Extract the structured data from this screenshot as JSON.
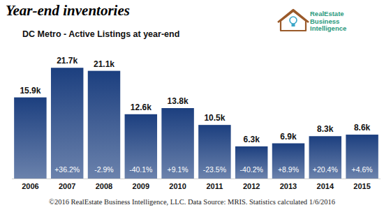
{
  "chart_data": {
    "type": "bar",
    "title": "Year-end inventories",
    "subtitle": "DC Metro - Active Listings at year-end",
    "logo_text": [
      "RealEstate",
      "Business",
      "Intelligence"
    ],
    "caption": "©2016 RealEstate Business Intelligence, LLC. Data Source: MRIS. Statistics calculated 1/6/2016",
    "categories": [
      "2006",
      "2007",
      "2008",
      "2009",
      "2010",
      "2011",
      "2012",
      "2013",
      "2014",
      "2015"
    ],
    "values": [
      15900,
      21700,
      21100,
      12600,
      13800,
      10500,
      6300,
      6900,
      8300,
      8600
    ],
    "value_labels": [
      "15.9k",
      "21.7k",
      "21.1k",
      "12.6k",
      "13.8k",
      "10.5k",
      "6.3k",
      "6.9k",
      "8.3k",
      "8.6k"
    ],
    "change_labels": [
      null,
      "+36.2%",
      "-2.9%",
      "-40.1%",
      "+9.1%",
      "-23.5%",
      "-40.2%",
      "+8.9%",
      "+20.4%",
      "+4.6%"
    ],
    "color": "#1c3f7f",
    "ylim": [
      0,
      22000
    ],
    "grid": false,
    "data_labels": true,
    "tick_labels": "x"
  }
}
